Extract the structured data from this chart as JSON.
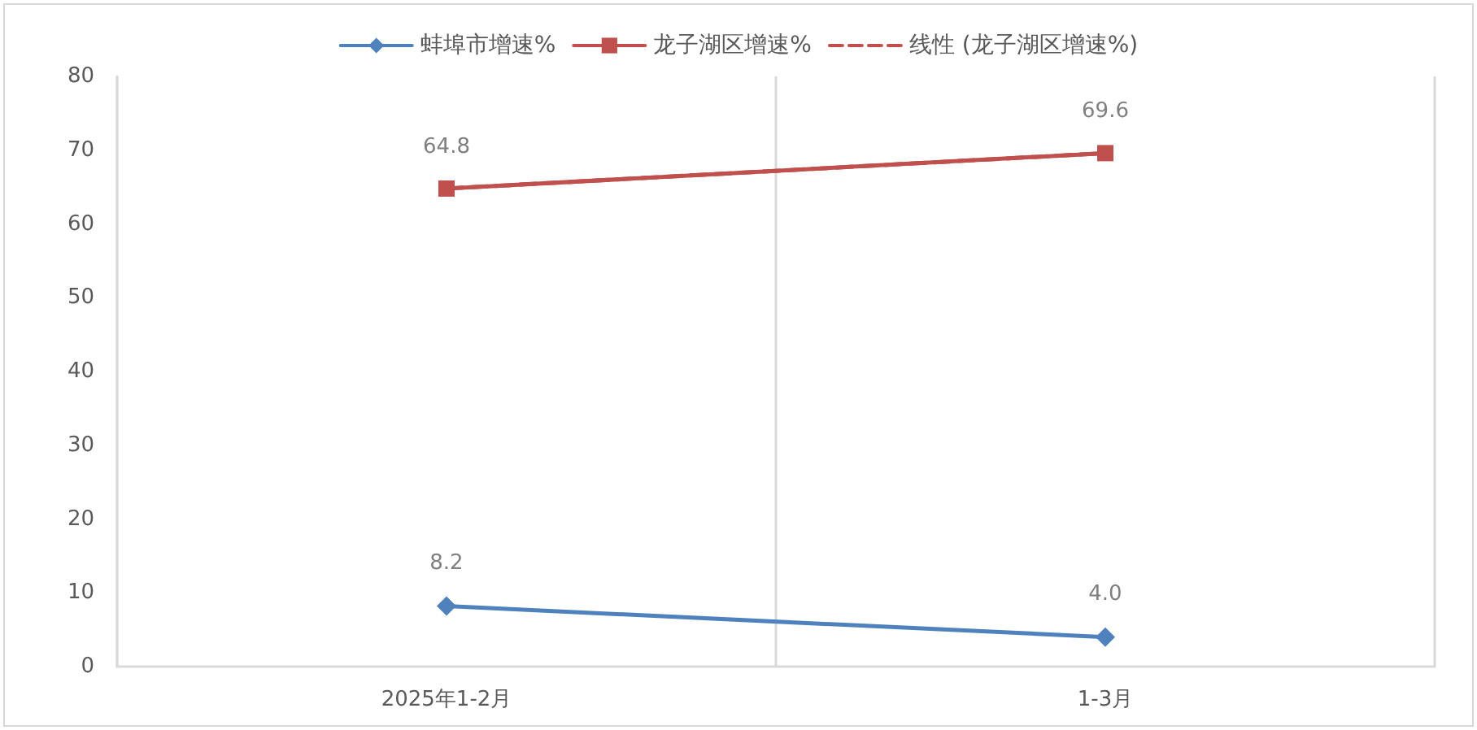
{
  "chart_data": {
    "type": "line",
    "categories": [
      "2025年1-2月",
      "1-3月"
    ],
    "series": [
      {
        "name": "蚌埠市增速%",
        "color": "#4f81bd",
        "values": [
          8.2,
          4.0
        ],
        "value_labels": [
          "8.2",
          "4.0"
        ],
        "marker": "diamond"
      },
      {
        "name": "龙子湖区增速%",
        "color": "#c0504d",
        "values": [
          64.8,
          69.6
        ],
        "value_labels": [
          "64.8",
          "69.6"
        ],
        "marker": "square"
      },
      {
        "name": "线性 (龙子湖区增速%)",
        "color": "#c0504d",
        "values": [
          64.8,
          69.6
        ],
        "marker": "none",
        "line_style": "dashed"
      }
    ],
    "ylim": [
      0,
      80
    ],
    "yticks": [
      0,
      10,
      20,
      30,
      40,
      50,
      60,
      70,
      80
    ],
    "grid": "x",
    "legend": "top"
  }
}
